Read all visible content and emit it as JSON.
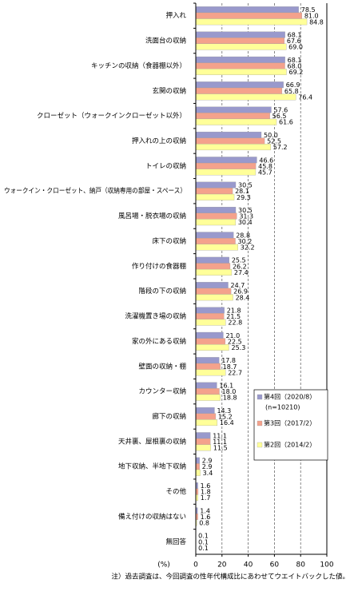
{
  "chart_data": {
    "type": "hbar",
    "unit_label": "(%)",
    "footnote": "注）過去調査は、今回調査の性年代構成比にあわせてウエイトバックした値。",
    "categories": [
      "押入れ",
      "洗面台の収納",
      "キッチンの収納（食器棚以外）",
      "玄関の収納",
      "クローゼット（ウォークインクローゼット以外）",
      "押入れの上の収納",
      "トイレの収納",
      "ウォークイン・クローゼット、納戸（収納専用の部屋・スペース）",
      "風呂場・脱衣場の収納",
      "床下の収納",
      "作り付けの食器棚",
      "階段の下の収納",
      "洗濯機置き場の収納",
      "家の外にある収納",
      "壁面の収納・棚",
      "カウンター収納",
      "廊下の収納",
      "天井裏、屋根裏の収納",
      "地下収納、半地下収納",
      "その他",
      "備え付けの収納はない",
      "無回答"
    ],
    "series": [
      {
        "name": "第4回（2020/8）",
        "note": "(n=10210)",
        "color": "#9999cc",
        "values": [
          78.5,
          68.1,
          68.1,
          66.9,
          57.6,
          50.0,
          46.6,
          30.5,
          30.5,
          28.8,
          25.5,
          24.7,
          21.8,
          21.0,
          17.8,
          16.1,
          14.3,
          11.1,
          2.9,
          1.6,
          1.4,
          0.1
        ],
        "value_labels": [
          "78.5",
          "68.1",
          "68.1",
          "66.9",
          "57.6",
          "50.0",
          "46.6",
          "30.5",
          "30.5",
          "28.8",
          "25.5",
          "24.7",
          "21.8",
          "21.0",
          "17.8",
          "16.1",
          "14.3",
          "11.1",
          "2.9",
          "1.6",
          "1.4",
          "0.1"
        ]
      },
      {
        "name": "第3回（2017/2）",
        "color": "#f4a28c",
        "values": [
          81.0,
          67.6,
          68.0,
          65.8,
          56.5,
          52.5,
          45.8,
          28.1,
          31.3,
          30.2,
          26.2,
          26.9,
          21.5,
          22.5,
          18.7,
          18.0,
          15.2,
          11.1,
          2.9,
          1.8,
          1.6,
          0.1
        ],
        "value_labels": [
          "81.0",
          "67.6",
          "68.0",
          "65.8",
          "56.5",
          "52.5",
          "45.8",
          "28.1",
          "31.3",
          "30.2",
          "26.2",
          "26.9",
          "21.5",
          "22.5",
          "18.7",
          "18.0",
          "15.2",
          "11.1",
          "2.9",
          "1.8",
          "1.6",
          "0.1"
        ]
      },
      {
        "name": "第2回（2014/2）",
        "color": "#ffff99",
        "values": [
          84.8,
          69.0,
          69.2,
          76.4,
          61.6,
          57.2,
          45.7,
          29.3,
          30.4,
          32.2,
          27.4,
          28.4,
          22.8,
          25.3,
          22.7,
          18.8,
          16.4,
          11.5,
          3.4,
          1.7,
          0.8,
          0.1
        ],
        "value_labels": [
          "84.8",
          "69.0",
          "69.2",
          "76.4",
          "61.6",
          "57.2",
          "45.7",
          "29.3",
          "30.4",
          "32.2",
          "27.4",
          "28.4",
          "22.8",
          "25.3",
          "22.7",
          "18.8",
          "16.4",
          "11.5",
          "3.4",
          "1.7",
          "0.8",
          "0.1"
        ]
      }
    ],
    "xlim": [
      0,
      100
    ],
    "xticks": [
      0,
      20,
      40,
      60,
      80,
      100
    ],
    "grid": true
  }
}
